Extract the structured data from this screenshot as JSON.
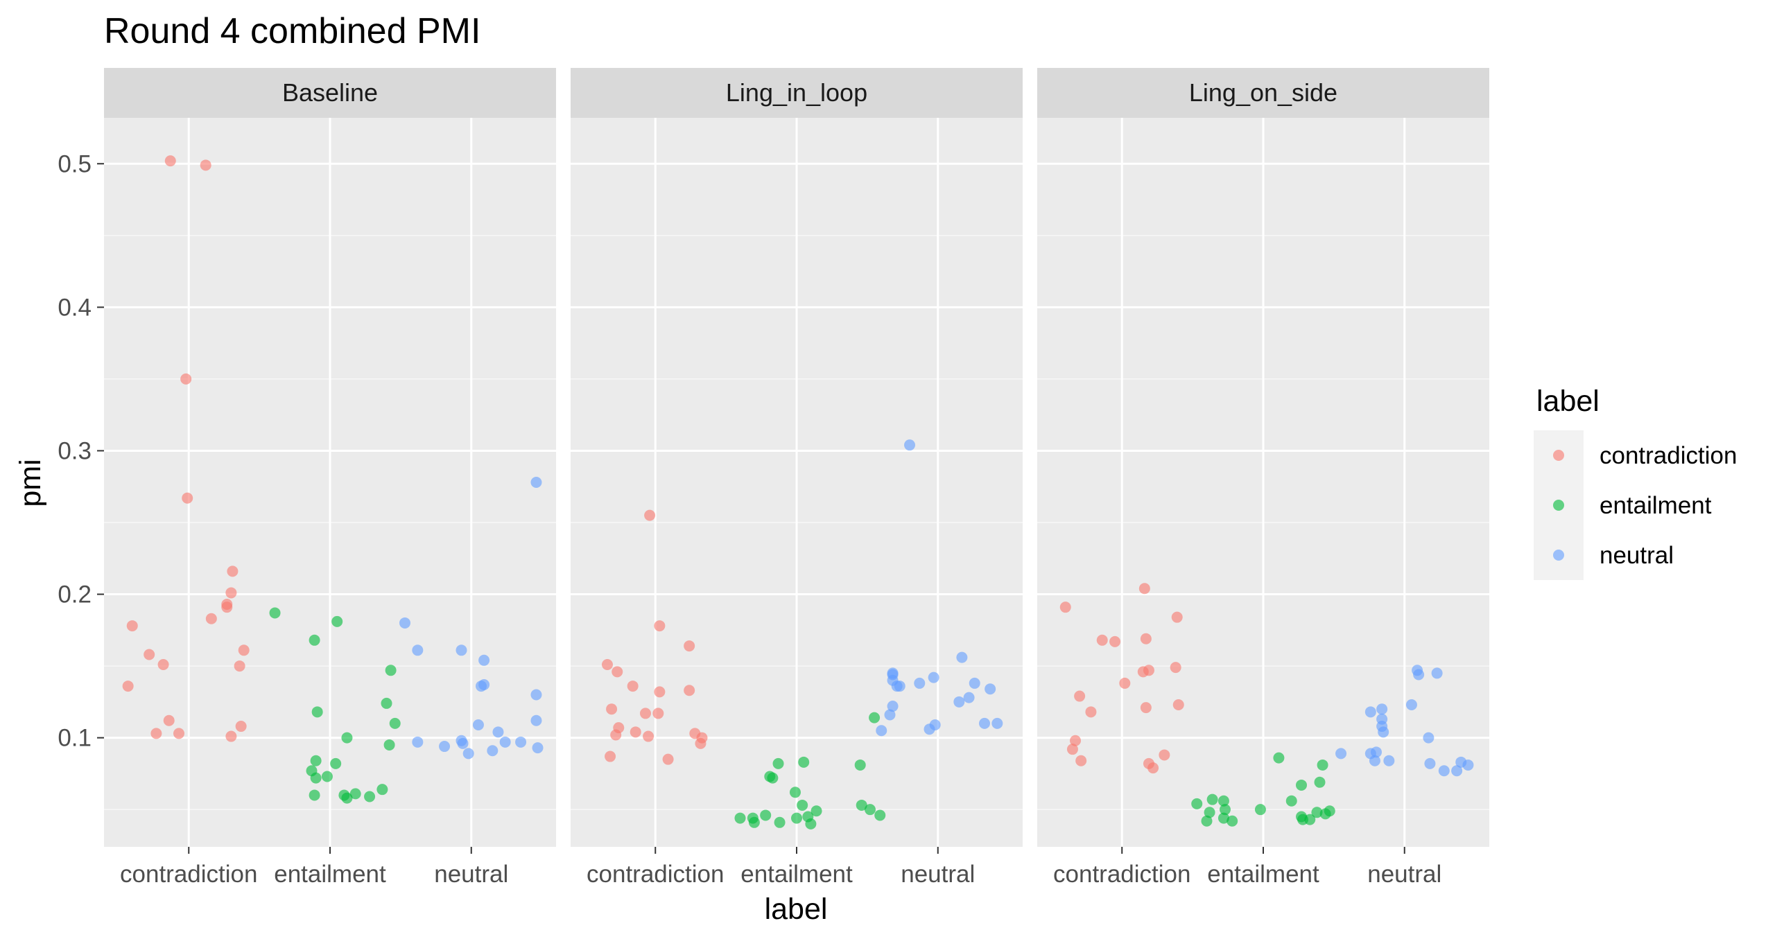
{
  "chart_data": {
    "type": "scatter",
    "title": "Round 4 combined PMI",
    "xlabel": "label",
    "ylabel": "pmi",
    "ylim": [
      0.024,
      0.532
    ],
    "y_ticks": [
      0.1,
      0.2,
      0.3,
      0.4,
      0.5
    ],
    "y_tick_labels": [
      "0.1",
      "0.2",
      "0.3",
      "0.4",
      "0.5"
    ],
    "categories": [
      "contradiction",
      "entailment",
      "neutral"
    ],
    "grid": true,
    "legend": {
      "title": "label",
      "position": "right",
      "entries": [
        {
          "name": "contradiction",
          "color": "#F8766D"
        },
        {
          "name": "entailment",
          "color": "#00BA38"
        },
        {
          "name": "neutral",
          "color": "#619CFF"
        }
      ]
    },
    "panels": [
      {
        "name": "Baseline",
        "series": [
          {
            "name": "contradiction",
            "color": "#F8766D",
            "points": [
              {
                "x": 0.6,
                "y": 0.178
              },
              {
                "x": 0.72,
                "y": 0.158
              },
              {
                "x": 0.82,
                "y": 0.151
              },
              {
                "x": 0.57,
                "y": 0.136
              },
              {
                "x": 0.77,
                "y": 0.103
              },
              {
                "x": 0.86,
                "y": 0.112
              },
              {
                "x": 0.93,
                "y": 0.103
              },
              {
                "x": 0.87,
                "y": 0.502
              },
              {
                "x": 1.12,
                "y": 0.499
              },
              {
                "x": 0.98,
                "y": 0.35
              },
              {
                "x": 0.99,
                "y": 0.267
              },
              {
                "x": 1.31,
                "y": 0.216
              },
              {
                "x": 1.3,
                "y": 0.201
              },
              {
                "x": 1.27,
                "y": 0.193
              },
              {
                "x": 1.27,
                "y": 0.191
              },
              {
                "x": 1.16,
                "y": 0.183
              },
              {
                "x": 1.39,
                "y": 0.161
              },
              {
                "x": 1.36,
                "y": 0.15
              },
              {
                "x": 1.37,
                "y": 0.108
              },
              {
                "x": 1.3,
                "y": 0.101
              }
            ]
          },
          {
            "name": "entailment",
            "color": "#00BA38",
            "points": [
              {
                "x": 1.61,
                "y": 0.187
              },
              {
                "x": 1.89,
                "y": 0.168
              },
              {
                "x": 2.05,
                "y": 0.181
              },
              {
                "x": 1.91,
                "y": 0.118
              },
              {
                "x": 2.12,
                "y": 0.1
              },
              {
                "x": 1.9,
                "y": 0.084
              },
              {
                "x": 2.04,
                "y": 0.082
              },
              {
                "x": 1.87,
                "y": 0.077
              },
              {
                "x": 1.9,
                "y": 0.072
              },
              {
                "x": 1.98,
                "y": 0.073
              },
              {
                "x": 1.89,
                "y": 0.06
              },
              {
                "x": 2.1,
                "y": 0.06
              },
              {
                "x": 2.12,
                "y": 0.058
              },
              {
                "x": 2.18,
                "y": 0.061
              },
              {
                "x": 2.28,
                "y": 0.059
              },
              {
                "x": 2.37,
                "y": 0.064
              },
              {
                "x": 2.43,
                "y": 0.147
              },
              {
                "x": 2.4,
                "y": 0.124
              },
              {
                "x": 2.46,
                "y": 0.11
              },
              {
                "x": 2.42,
                "y": 0.095
              }
            ]
          },
          {
            "name": "neutral",
            "color": "#619CFF",
            "points": [
              {
                "x": 2.53,
                "y": 0.18
              },
              {
                "x": 2.62,
                "y": 0.161
              },
              {
                "x": 2.93,
                "y": 0.161
              },
              {
                "x": 3.09,
                "y": 0.154
              },
              {
                "x": 3.09,
                "y": 0.137
              },
              {
                "x": 3.07,
                "y": 0.136
              },
              {
                "x": 3.46,
                "y": 0.278
              },
              {
                "x": 3.46,
                "y": 0.13
              },
              {
                "x": 3.46,
                "y": 0.112
              },
              {
                "x": 3.05,
                "y": 0.109
              },
              {
                "x": 3.19,
                "y": 0.104
              },
              {
                "x": 3.24,
                "y": 0.097
              },
              {
                "x": 3.35,
                "y": 0.097
              },
              {
                "x": 2.62,
                "y": 0.097
              },
              {
                "x": 2.93,
                "y": 0.098
              },
              {
                "x": 2.94,
                "y": 0.096
              },
              {
                "x": 2.81,
                "y": 0.094
              },
              {
                "x": 3.47,
                "y": 0.093
              },
              {
                "x": 3.15,
                "y": 0.091
              },
              {
                "x": 2.98,
                "y": 0.089
              }
            ]
          }
        ]
      },
      {
        "name": "Ling_in_loop",
        "series": [
          {
            "name": "contradiction",
            "color": "#F8766D",
            "points": [
              {
                "x": 0.66,
                "y": 0.151
              },
              {
                "x": 0.73,
                "y": 0.146
              },
              {
                "x": 0.84,
                "y": 0.136
              },
              {
                "x": 0.69,
                "y": 0.12
              },
              {
                "x": 0.74,
                "y": 0.107
              },
              {
                "x": 0.72,
                "y": 0.102
              },
              {
                "x": 0.68,
                "y": 0.087
              },
              {
                "x": 0.86,
                "y": 0.104
              },
              {
                "x": 0.93,
                "y": 0.117
              },
              {
                "x": 1.02,
                "y": 0.117
              },
              {
                "x": 1.03,
                "y": 0.132
              },
              {
                "x": 1.03,
                "y": 0.178
              },
              {
                "x": 0.95,
                "y": 0.101
              },
              {
                "x": 1.09,
                "y": 0.085
              },
              {
                "x": 0.96,
                "y": 0.255
              },
              {
                "x": 1.24,
                "y": 0.164
              },
              {
                "x": 1.24,
                "y": 0.133
              },
              {
                "x": 1.28,
                "y": 0.103
              },
              {
                "x": 1.33,
                "y": 0.1
              },
              {
                "x": 1.32,
                "y": 0.096
              }
            ]
          },
          {
            "name": "entailment",
            "color": "#00BA38",
            "points": [
              {
                "x": 1.6,
                "y": 0.044
              },
              {
                "x": 1.69,
                "y": 0.044
              },
              {
                "x": 1.7,
                "y": 0.041
              },
              {
                "x": 1.78,
                "y": 0.046
              },
              {
                "x": 1.81,
                "y": 0.073
              },
              {
                "x": 1.83,
                "y": 0.072
              },
              {
                "x": 1.87,
                "y": 0.082
              },
              {
                "x": 1.88,
                "y": 0.041
              },
              {
                "x": 1.99,
                "y": 0.062
              },
              {
                "x": 2.0,
                "y": 0.044
              },
              {
                "x": 2.04,
                "y": 0.053
              },
              {
                "x": 2.05,
                "y": 0.083
              },
              {
                "x": 2.08,
                "y": 0.045
              },
              {
                "x": 2.1,
                "y": 0.04
              },
              {
                "x": 2.14,
                "y": 0.049
              },
              {
                "x": 2.45,
                "y": 0.081
              },
              {
                "x": 2.46,
                "y": 0.053
              },
              {
                "x": 2.52,
                "y": 0.05
              },
              {
                "x": 2.55,
                "y": 0.114
              },
              {
                "x": 2.59,
                "y": 0.046
              }
            ]
          },
          {
            "name": "neutral",
            "color": "#619CFF",
            "points": [
              {
                "x": 2.8,
                "y": 0.304
              },
              {
                "x": 2.6,
                "y": 0.105
              },
              {
                "x": 2.68,
                "y": 0.145
              },
              {
                "x": 2.68,
                "y": 0.144
              },
              {
                "x": 2.68,
                "y": 0.14
              },
              {
                "x": 2.66,
                "y": 0.116
              },
              {
                "x": 2.68,
                "y": 0.122
              },
              {
                "x": 2.71,
                "y": 0.136
              },
              {
                "x": 2.73,
                "y": 0.136
              },
              {
                "x": 2.87,
                "y": 0.138
              },
              {
                "x": 2.97,
                "y": 0.142
              },
              {
                "x": 2.94,
                "y": 0.106
              },
              {
                "x": 2.98,
                "y": 0.109
              },
              {
                "x": 3.17,
                "y": 0.156
              },
              {
                "x": 3.26,
                "y": 0.138
              },
              {
                "x": 3.22,
                "y": 0.128
              },
              {
                "x": 3.15,
                "y": 0.125
              },
              {
                "x": 3.37,
                "y": 0.134
              },
              {
                "x": 3.33,
                "y": 0.11
              },
              {
                "x": 3.42,
                "y": 0.11
              }
            ]
          }
        ]
      },
      {
        "name": "Ling_on_side",
        "series": [
          {
            "name": "contradiction",
            "color": "#F8766D",
            "points": [
              {
                "x": 0.6,
                "y": 0.191
              },
              {
                "x": 0.65,
                "y": 0.092
              },
              {
                "x": 0.67,
                "y": 0.098
              },
              {
                "x": 0.7,
                "y": 0.129
              },
              {
                "x": 0.71,
                "y": 0.084
              },
              {
                "x": 0.78,
                "y": 0.118
              },
              {
                "x": 0.86,
                "y": 0.168
              },
              {
                "x": 0.95,
                "y": 0.167
              },
              {
                "x": 1.02,
                "y": 0.138
              },
              {
                "x": 1.16,
                "y": 0.204
              },
              {
                "x": 1.17,
                "y": 0.169
              },
              {
                "x": 1.15,
                "y": 0.146
              },
              {
                "x": 1.19,
                "y": 0.147
              },
              {
                "x": 1.17,
                "y": 0.121
              },
              {
                "x": 1.19,
                "y": 0.082
              },
              {
                "x": 1.22,
                "y": 0.079
              },
              {
                "x": 1.3,
                "y": 0.088
              },
              {
                "x": 1.39,
                "y": 0.184
              },
              {
                "x": 1.38,
                "y": 0.149
              },
              {
                "x": 1.4,
                "y": 0.123
              }
            ]
          },
          {
            "name": "entailment",
            "color": "#00BA38",
            "points": [
              {
                "x": 1.53,
                "y": 0.054
              },
              {
                "x": 1.6,
                "y": 0.042
              },
              {
                "x": 1.62,
                "y": 0.048
              },
              {
                "x": 1.64,
                "y": 0.057
              },
              {
                "x": 1.72,
                "y": 0.056
              },
              {
                "x": 1.72,
                "y": 0.044
              },
              {
                "x": 1.73,
                "y": 0.05
              },
              {
                "x": 1.78,
                "y": 0.042
              },
              {
                "x": 1.98,
                "y": 0.05
              },
              {
                "x": 2.11,
                "y": 0.086
              },
              {
                "x": 2.2,
                "y": 0.056
              },
              {
                "x": 2.27,
                "y": 0.067
              },
              {
                "x": 2.27,
                "y": 0.045
              },
              {
                "x": 2.28,
                "y": 0.043
              },
              {
                "x": 2.33,
                "y": 0.043
              },
              {
                "x": 2.38,
                "y": 0.048
              },
              {
                "x": 2.4,
                "y": 0.069
              },
              {
                "x": 2.42,
                "y": 0.081
              },
              {
                "x": 2.44,
                "y": 0.047
              },
              {
                "x": 2.47,
                "y": 0.049
              }
            ]
          },
          {
            "name": "neutral",
            "color": "#619CFF",
            "points": [
              {
                "x": 2.55,
                "y": 0.089
              },
              {
                "x": 2.76,
                "y": 0.118
              },
              {
                "x": 2.76,
                "y": 0.089
              },
              {
                "x": 2.79,
                "y": 0.084
              },
              {
                "x": 2.8,
                "y": 0.09
              },
              {
                "x": 2.84,
                "y": 0.12
              },
              {
                "x": 2.84,
                "y": 0.113
              },
              {
                "x": 2.84,
                "y": 0.108
              },
              {
                "x": 2.85,
                "y": 0.104
              },
              {
                "x": 2.89,
                "y": 0.084
              },
              {
                "x": 3.05,
                "y": 0.123
              },
              {
                "x": 3.09,
                "y": 0.147
              },
              {
                "x": 3.1,
                "y": 0.144
              },
              {
                "x": 3.17,
                "y": 0.1
              },
              {
                "x": 3.18,
                "y": 0.082
              },
              {
                "x": 3.23,
                "y": 0.145
              },
              {
                "x": 3.28,
                "y": 0.077
              },
              {
                "x": 3.37,
                "y": 0.077
              },
              {
                "x": 3.4,
                "y": 0.083
              },
              {
                "x": 3.45,
                "y": 0.081
              }
            ]
          }
        ]
      }
    ]
  }
}
